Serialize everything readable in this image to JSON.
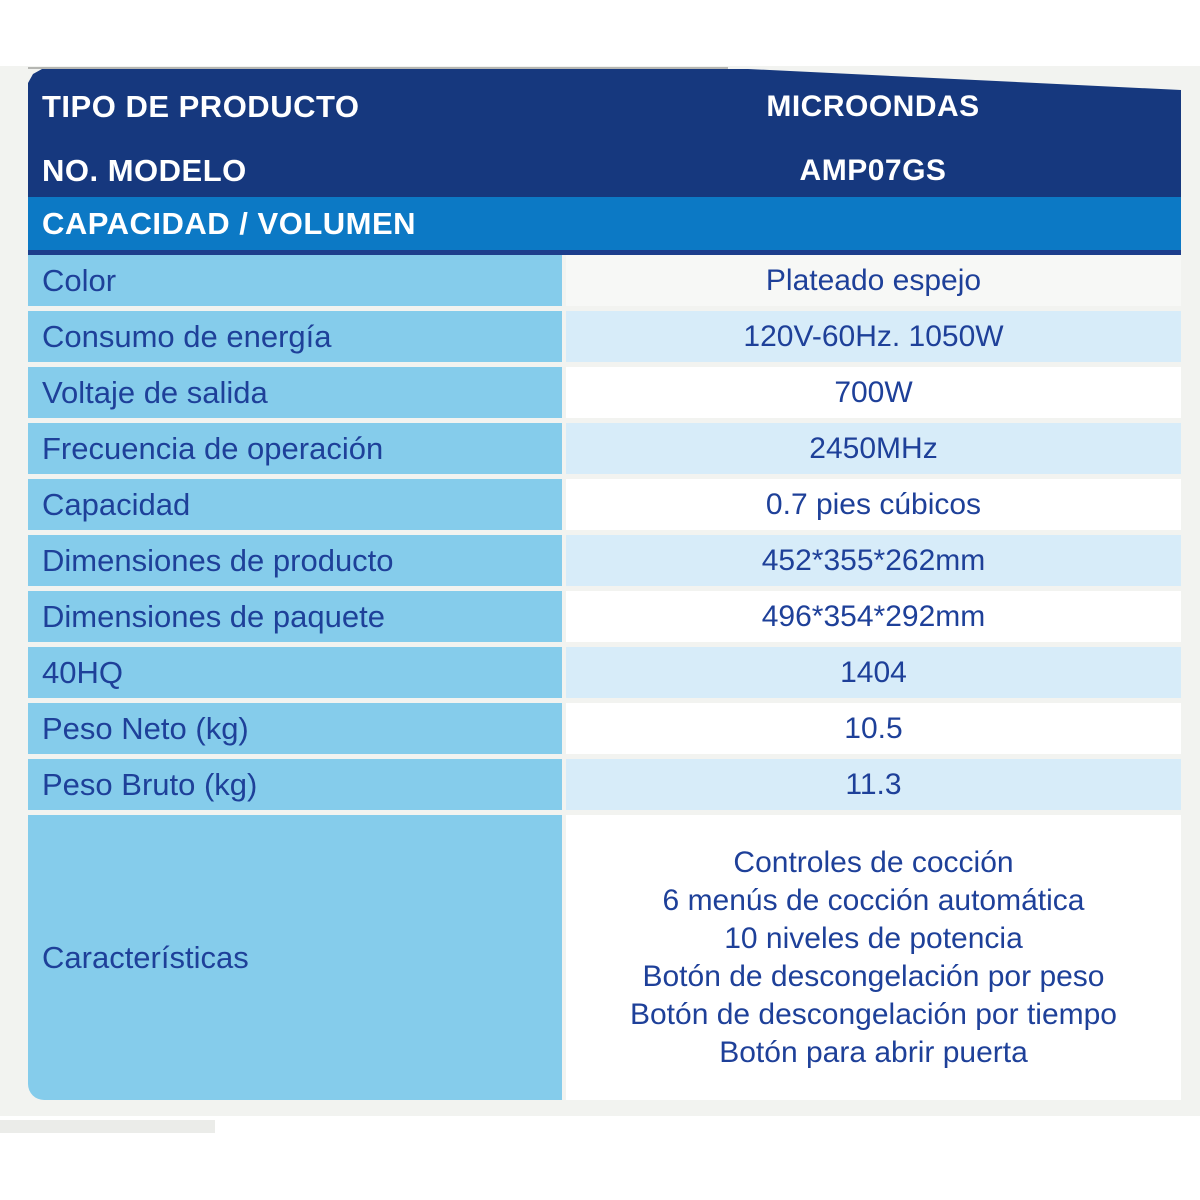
{
  "colors": {
    "navy": "#16387E",
    "section-blue": "#0C79C5",
    "section-border": "#1C3E8C",
    "label-cell": "#85CCEB",
    "pale-cell": "#D7ECF9",
    "first-cell": "#F7F8F6",
    "text-blue": "#1E4099",
    "page-gray": "#F2F3F0"
  },
  "header": {
    "product_type_label": "TIPO DE PRODUCTO",
    "product_type_value": "MICROONDAS",
    "model_label": "NO. MODELO",
    "model_value": "AMP07GS"
  },
  "section_title": "CAPACIDAD / VOLUMEN",
  "specs": {
    "rows": [
      {
        "label": "Color",
        "value": "Plateado espejo"
      },
      {
        "label": "Consumo de energía",
        "value": "120V-60Hz. 1050W"
      },
      {
        "label": "Voltaje de salida",
        "value": "700W"
      },
      {
        "label": "Frecuencia de operación",
        "value": "2450MHz"
      },
      {
        "label": "Capacidad",
        "value": "0.7 pies cúbicos"
      },
      {
        "label": "Dimensiones de producto",
        "value": "452*355*262mm"
      },
      {
        "label": "Dimensiones de paquete",
        "value": "496*354*292mm"
      },
      {
        "label": "40HQ",
        "value": "1404"
      },
      {
        "label": "Peso Neto (kg)",
        "value": "10.5"
      },
      {
        "label": "Peso Bruto (kg)",
        "value": "11.3"
      }
    ]
  },
  "features": {
    "label": "Características",
    "items": [
      "Controles de cocción",
      "6 menús de cocción automática",
      "10 niveles de potencia",
      "Botón de descongelación por peso",
      "Botón de descongelación por tiempo",
      "Botón para abrir puerta"
    ]
  }
}
